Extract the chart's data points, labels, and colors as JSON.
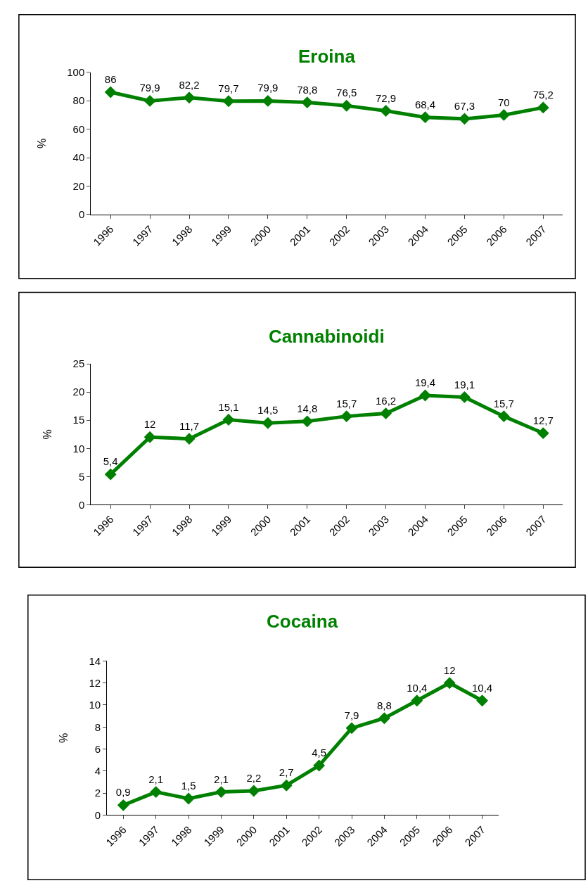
{
  "chart_data": [
    {
      "type": "line",
      "title": "Eroina",
      "ylabel": "%",
      "categories": [
        "1996",
        "1997",
        "1998",
        "1999",
        "2000",
        "2001",
        "2002",
        "2003",
        "2004",
        "2005",
        "2006",
        "2007"
      ],
      "series": [
        {
          "color": "#008000",
          "values": [
            86,
            79.9,
            82.2,
            79.7,
            79.9,
            78.8,
            76.5,
            72.9,
            68.4,
            67.3,
            70,
            75.2
          ],
          "value_labels": [
            "86",
            "79,9",
            "82,2",
            "79,7",
            "79,9",
            "78,8",
            "76,5",
            "72,9",
            "68,4",
            "67,3",
            "70",
            "75,2"
          ]
        }
      ],
      "ylim": [
        0,
        100
      ],
      "yticks": [
        0,
        20,
        40,
        60,
        80,
        100
      ],
      "marker": "diamond"
    },
    {
      "type": "line",
      "title": "Cannabinoidi",
      "ylabel": "%",
      "categories": [
        "1996",
        "1997",
        "1998",
        "1999",
        "2000",
        "2001",
        "2002",
        "2003",
        "2004",
        "2005",
        "2006",
        "2007"
      ],
      "series": [
        {
          "color": "#008000",
          "values": [
            5.4,
            12,
            11.7,
            15.1,
            14.5,
            14.8,
            15.7,
            16.2,
            19.4,
            19.1,
            15.7,
            12.7
          ],
          "value_labels": [
            "5,4",
            "12",
            "11,7",
            "15,1",
            "14,5",
            "14,8",
            "15,7",
            "16,2",
            "19,4",
            "19,1",
            "15,7",
            "12,7"
          ]
        }
      ],
      "ylim": [
        0,
        25
      ],
      "yticks": [
        0,
        5,
        10,
        15,
        20,
        25
      ],
      "marker": "diamond"
    },
    {
      "type": "line",
      "title": "Cocaina",
      "ylabel": "%",
      "categories": [
        "1996",
        "1997",
        "1998",
        "1999",
        "2000",
        "2001",
        "2002",
        "2003",
        "2004",
        "2005",
        "2006",
        "2007"
      ],
      "series": [
        {
          "color": "#008000",
          "values": [
            0.9,
            2.1,
            1.5,
            2.1,
            2.2,
            2.7,
            4.5,
            7.9,
            8.8,
            10.4,
            12,
            10.4
          ],
          "value_labels": [
            "0,9",
            "2,1",
            "1,5",
            "2,1",
            "2,2",
            "2,7",
            "4,5",
            "7,9",
            "8,8",
            "10,4",
            "12",
            "10,4"
          ]
        }
      ],
      "ylim": [
        0,
        14
      ],
      "yticks": [
        0,
        2,
        4,
        6,
        8,
        10,
        12,
        14
      ],
      "marker": "diamond"
    }
  ]
}
